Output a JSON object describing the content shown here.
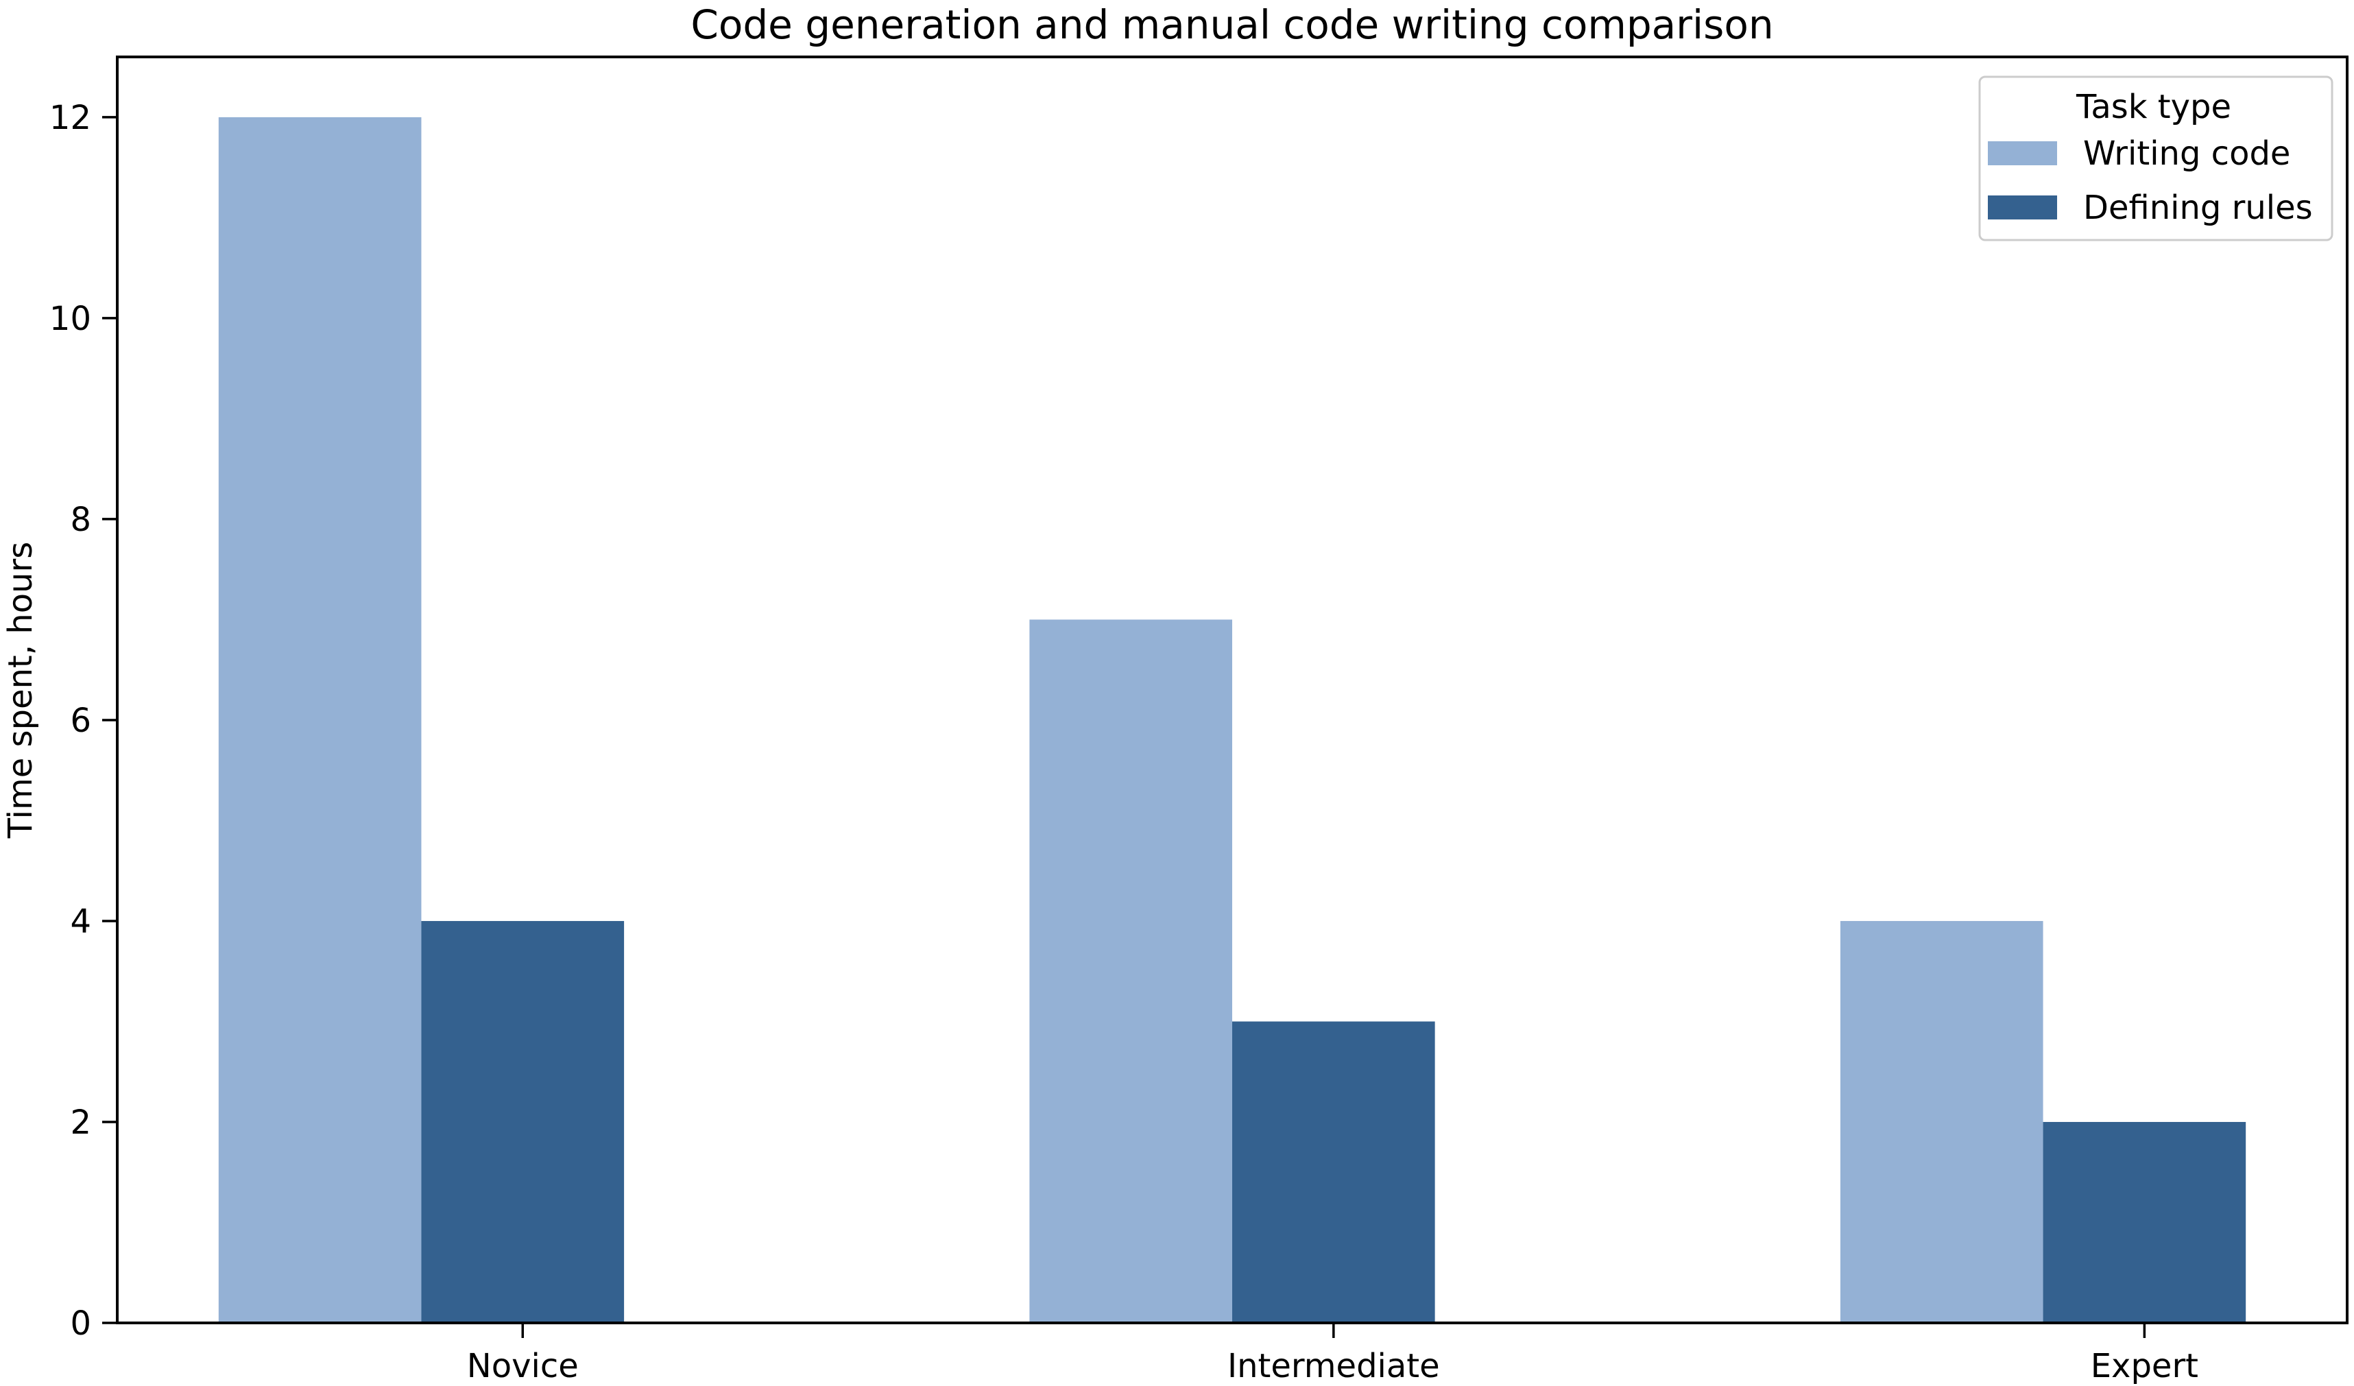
{
  "chart_data": {
    "type": "bar",
    "title": "Code generation and manual code writing comparison",
    "ylabel": "Time spent, hours",
    "xlabel": "",
    "categories": [
      "Novice",
      "Intermediate",
      "Expert"
    ],
    "series": [
      {
        "name": "Writing code",
        "color": "#94b1d5",
        "values": [
          12,
          7,
          4
        ]
      },
      {
        "name": "Defining rules",
        "color": "#34618f",
        "values": [
          4,
          3,
          2
        ]
      }
    ],
    "legend": {
      "title": "Task type",
      "position": "upper right"
    },
    "yticks": [
      "0",
      "2",
      "4",
      "6",
      "8",
      "10",
      "12"
    ],
    "ytick_values": [
      0,
      2,
      4,
      6,
      8,
      10,
      12
    ],
    "ylim": [
      0,
      12.6
    ],
    "grid": false,
    "colors": {
      "background": "#ffffff",
      "spine": "#000000",
      "text": "#000000",
      "legend_border": "#cccccc",
      "legend_fill": "#ffffff"
    }
  }
}
